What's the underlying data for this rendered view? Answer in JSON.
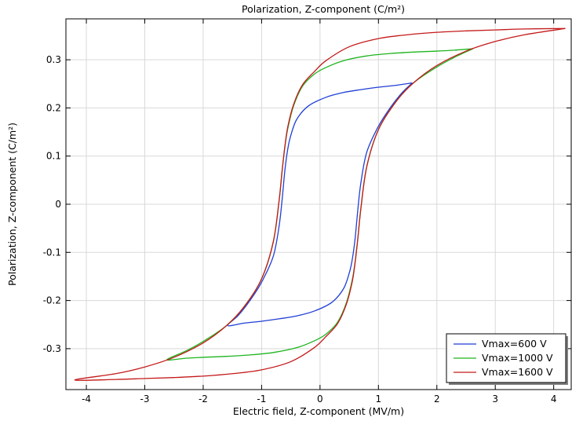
{
  "chart_data": {
    "type": "line",
    "title": "Polarization, Z-component (C/m²)",
    "xlabel": "Electric field, Z-component (MV/m)",
    "ylabel": "Polarization, Z-component (C/m²)",
    "xlim": [
      -4.35,
      4.3
    ],
    "ylim": [
      -0.385,
      0.385
    ],
    "xticks": [
      -4,
      -3,
      -2,
      -1,
      0,
      1,
      2,
      3,
      4
    ],
    "xtick_labels": [
      "-4",
      "-3",
      "-2",
      "-1",
      "0",
      "1",
      "2",
      "3",
      "4"
    ],
    "yticks": [
      -0.3,
      -0.2,
      -0.1,
      0,
      0.1,
      0.2,
      0.3
    ],
    "ytick_labels": [
      "-0.3",
      "-0.2",
      "-0.1",
      "0",
      "0.1",
      "0.2",
      "0.3"
    ],
    "grid": true,
    "legend_position": "bottom-right",
    "series": [
      {
        "name": "Vmax=600 V",
        "color": "#1f3fd6",
        "x": [
          1.58,
          1.3,
          1.0,
          0.7,
          0.4,
          0.1,
          -0.2,
          -0.4,
          -0.5,
          -0.55,
          -0.6,
          -0.65,
          -0.7,
          -0.8,
          -1.0,
          -1.2,
          -1.4,
          -1.58,
          -1.3,
          -1.0,
          -0.7,
          -0.4,
          -0.1,
          0.2,
          0.4,
          0.5,
          0.55,
          0.6,
          0.65,
          0.7,
          0.8,
          1.0,
          1.2,
          1.4,
          1.58
        ],
        "y": [
          0.252,
          0.247,
          0.243,
          0.238,
          0.232,
          0.222,
          0.204,
          0.176,
          0.143,
          0.116,
          0.072,
          0.008,
          -0.045,
          -0.108,
          -0.162,
          -0.2,
          -0.231,
          -0.252,
          -0.247,
          -0.243,
          -0.238,
          -0.232,
          -0.222,
          -0.204,
          -0.176,
          -0.143,
          -0.116,
          -0.072,
          -0.008,
          0.045,
          0.108,
          0.162,
          0.2,
          0.231,
          0.252
        ]
      },
      {
        "name": "Vmax=1000 V",
        "color": "#1fb51f",
        "x": [
          2.62,
          2.3,
          2.0,
          1.6,
          1.2,
          0.8,
          0.4,
          0.1,
          -0.1,
          -0.3,
          -0.45,
          -0.55,
          -0.6,
          -0.65,
          -0.7,
          -0.8,
          -1.0,
          -1.3,
          -1.6,
          -2.0,
          -2.3,
          -2.62,
          -2.3,
          -2.0,
          -1.6,
          -1.2,
          -0.8,
          -0.4,
          -0.1,
          0.1,
          0.3,
          0.45,
          0.55,
          0.6,
          0.65,
          0.7,
          0.8,
          1.0,
          1.3,
          1.6,
          2.0,
          2.3,
          2.62
        ],
        "y": [
          0.323,
          0.32,
          0.318,
          0.316,
          0.313,
          0.308,
          0.298,
          0.284,
          0.27,
          0.245,
          0.205,
          0.158,
          0.12,
          0.068,
          0.008,
          -0.078,
          -0.155,
          -0.213,
          -0.252,
          -0.285,
          -0.305,
          -0.323,
          -0.32,
          -0.318,
          -0.316,
          -0.313,
          -0.308,
          -0.298,
          -0.284,
          -0.27,
          -0.245,
          -0.205,
          -0.158,
          -0.12,
          -0.068,
          -0.008,
          0.078,
          0.155,
          0.213,
          0.252,
          0.285,
          0.305,
          0.323
        ]
      },
      {
        "name": "Vmax=1600 V",
        "color": "#c41a1a",
        "x": [
          4.2,
          3.5,
          3.0,
          2.5,
          2.0,
          1.5,
          1.0,
          0.5,
          0.1,
          -0.1,
          -0.3,
          -0.45,
          -0.55,
          -0.6,
          -0.65,
          -0.7,
          -0.8,
          -1.0,
          -1.3,
          -1.6,
          -2.0,
          -2.5,
          -3.0,
          -3.5,
          -4.2,
          -3.5,
          -3.0,
          -2.5,
          -2.0,
          -1.5,
          -1.0,
          -0.5,
          -0.1,
          0.1,
          0.3,
          0.45,
          0.55,
          0.6,
          0.65,
          0.7,
          0.8,
          1.0,
          1.3,
          1.6,
          2.0,
          2.5,
          3.0,
          3.5,
          4.2
        ],
        "y": [
          0.365,
          0.364,
          0.362,
          0.36,
          0.357,
          0.352,
          0.344,
          0.327,
          0.298,
          0.275,
          0.248,
          0.208,
          0.162,
          0.122,
          0.068,
          0.008,
          -0.078,
          -0.155,
          -0.213,
          -0.252,
          -0.288,
          -0.318,
          -0.338,
          -0.352,
          -0.365,
          -0.364,
          -0.362,
          -0.36,
          -0.357,
          -0.352,
          -0.344,
          -0.327,
          -0.298,
          -0.275,
          -0.248,
          -0.208,
          -0.162,
          -0.122,
          -0.068,
          -0.008,
          0.078,
          0.155,
          0.213,
          0.252,
          0.288,
          0.318,
          0.338,
          0.352,
          0.365
        ]
      }
    ]
  }
}
